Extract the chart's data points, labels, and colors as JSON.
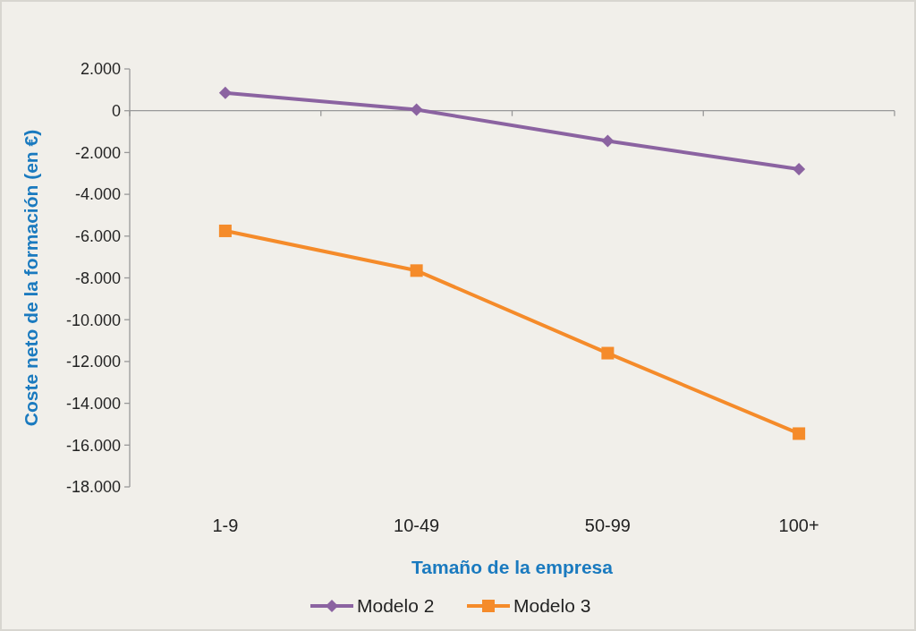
{
  "chart_data": {
    "type": "line",
    "xlabel": "Tamaño de la empresa",
    "ylabel": "Coste neto de la formación (en €)",
    "categories": [
      "1-9",
      "10-49",
      "50-99",
      "100+"
    ],
    "series": [
      {
        "name": "Modelo 2",
        "color": "#8b63a1",
        "marker": "diamond",
        "values": [
          850,
          50,
          -1450,
          -2800
        ]
      },
      {
        "name": "Modelo 3",
        "color": "#f58b2a",
        "marker": "square",
        "values": [
          -5750,
          -7650,
          -11600,
          -15450
        ]
      }
    ],
    "ylim": [
      -18000,
      2000
    ],
    "yticks": [
      {
        "value": 2000,
        "label": "2.000"
      },
      0,
      {
        "value": -2000,
        "label": "-2.000"
      },
      {
        "value": -4000,
        "label": "-4.000"
      },
      {
        "value": -6000,
        "label": "-6.000"
      },
      {
        "value": -8000,
        "label": "-8.000"
      },
      {
        "value": -10000,
        "label": "-10.000"
      },
      {
        "value": -12000,
        "label": "-12.000"
      },
      {
        "value": -14000,
        "label": "-14.000"
      },
      {
        "value": -16000,
        "label": "-16.000"
      },
      {
        "value": -18000,
        "label": "-18.000"
      }
    ],
    "legend": "bottom"
  }
}
